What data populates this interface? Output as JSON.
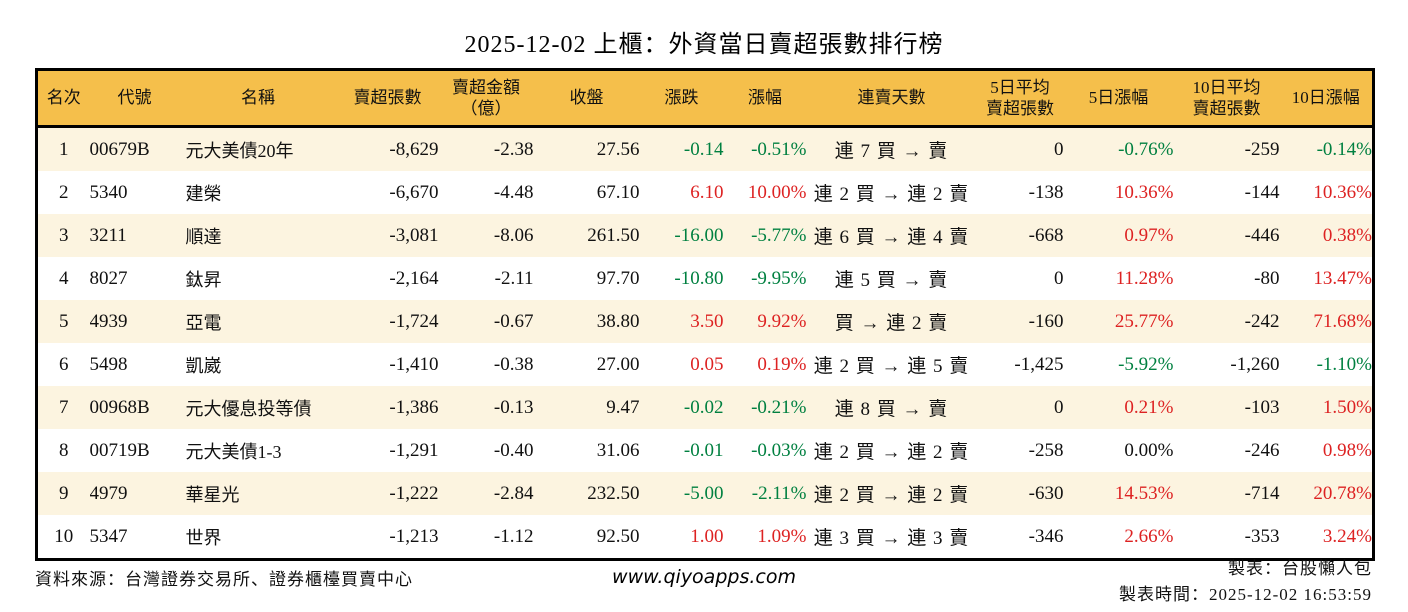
{
  "title": "2025-12-02 上櫃：外資當日賣超張數排行榜",
  "colors": {
    "up_red": "#dd2222",
    "down_green": "#008040",
    "header_bg": "#f5bf4b",
    "row_alt_bg": "#fcf4e0",
    "border": "#000000"
  },
  "table": {
    "headers": [
      "名次",
      "代號",
      "名稱",
      "賣超張數",
      "賣超金額\n（億）",
      "收盤",
      "漲跌",
      "漲幅",
      "連賣天數",
      "5日平均\n賣超張數",
      "5日漲幅",
      "10日平均\n賣超張數",
      "10日漲幅"
    ],
    "rows": [
      {
        "rank": "1",
        "code": "00679B",
        "name": "元大美債20年",
        "sell_volume": "-8,629",
        "sell_amount": "-2.38",
        "close": "27.56",
        "change": "-0.14",
        "change_pct": "-0.51%",
        "streak": "連 7 買 → 賣",
        "avg5_volume": "0",
        "pct5": "-0.76%",
        "avg10_volume": "-259",
        "pct10": "-0.14%"
      },
      {
        "rank": "2",
        "code": "5340",
        "name": "建榮",
        "sell_volume": "-6,670",
        "sell_amount": "-4.48",
        "close": "67.10",
        "change": "6.10",
        "change_pct": "10.00%",
        "streak": "連 2 買 → 連 2 賣",
        "avg5_volume": "-138",
        "pct5": "10.36%",
        "avg10_volume": "-144",
        "pct10": "10.36%"
      },
      {
        "rank": "3",
        "code": "3211",
        "name": "順達",
        "sell_volume": "-3,081",
        "sell_amount": "-8.06",
        "close": "261.50",
        "change": "-16.00",
        "change_pct": "-5.77%",
        "streak": "連 6 買 → 連 4 賣",
        "avg5_volume": "-668",
        "pct5": "0.97%",
        "avg10_volume": "-446",
        "pct10": "0.38%"
      },
      {
        "rank": "4",
        "code": "8027",
        "name": "鈦昇",
        "sell_volume": "-2,164",
        "sell_amount": "-2.11",
        "close": "97.70",
        "change": "-10.80",
        "change_pct": "-9.95%",
        "streak": "連 5 買 → 賣",
        "avg5_volume": "0",
        "pct5": "11.28%",
        "avg10_volume": "-80",
        "pct10": "13.47%"
      },
      {
        "rank": "5",
        "code": "4939",
        "name": "亞電",
        "sell_volume": "-1,724",
        "sell_amount": "-0.67",
        "close": "38.80",
        "change": "3.50",
        "change_pct": "9.92%",
        "streak": "買 → 連 2 賣",
        "avg5_volume": "-160",
        "pct5": "25.77%",
        "avg10_volume": "-242",
        "pct10": "71.68%"
      },
      {
        "rank": "6",
        "code": "5498",
        "name": "凱崴",
        "sell_volume": "-1,410",
        "sell_amount": "-0.38",
        "close": "27.00",
        "change": "0.05",
        "change_pct": "0.19%",
        "streak": "連 2 買 → 連 5 賣",
        "avg5_volume": "-1,425",
        "pct5": "-5.92%",
        "avg10_volume": "-1,260",
        "pct10": "-1.10%"
      },
      {
        "rank": "7",
        "code": "00968B",
        "name": "元大優息投等債",
        "sell_volume": "-1,386",
        "sell_amount": "-0.13",
        "close": "9.47",
        "change": "-0.02",
        "change_pct": "-0.21%",
        "streak": "連 8 買 → 賣",
        "avg5_volume": "0",
        "pct5": "0.21%",
        "avg10_volume": "-103",
        "pct10": "1.50%"
      },
      {
        "rank": "8",
        "code": "00719B",
        "name": "元大美債1-3",
        "sell_volume": "-1,291",
        "sell_amount": "-0.40",
        "close": "31.06",
        "change": "-0.01",
        "change_pct": "-0.03%",
        "streak": "連 2 買 → 連 2 賣",
        "avg5_volume": "-258",
        "pct5": "0.00%",
        "avg10_volume": "-246",
        "pct10": "0.98%"
      },
      {
        "rank": "9",
        "code": "4979",
        "name": "華星光",
        "sell_volume": "-1,222",
        "sell_amount": "-2.84",
        "close": "232.50",
        "change": "-5.00",
        "change_pct": "-2.11%",
        "streak": "連 2 買 → 連 2 賣",
        "avg5_volume": "-630",
        "pct5": "14.53%",
        "avg10_volume": "-714",
        "pct10": "20.78%"
      },
      {
        "rank": "10",
        "code": "5347",
        "name": "世界",
        "sell_volume": "-1,213",
        "sell_amount": "-1.12",
        "close": "92.50",
        "change": "1.00",
        "change_pct": "1.09%",
        "streak": "連 3 買 → 連 3 賣",
        "avg5_volume": "-346",
        "pct5": "2.66%",
        "avg10_volume": "-353",
        "pct10": "3.24%"
      }
    ]
  },
  "footer": {
    "source": "資料來源：台灣證券交易所、證券櫃檯買賣中心",
    "website": "www.qiyoapps.com",
    "maker": "製表：台股懶人包",
    "made_time": "製表時間：2025-12-02 16:53:59"
  }
}
